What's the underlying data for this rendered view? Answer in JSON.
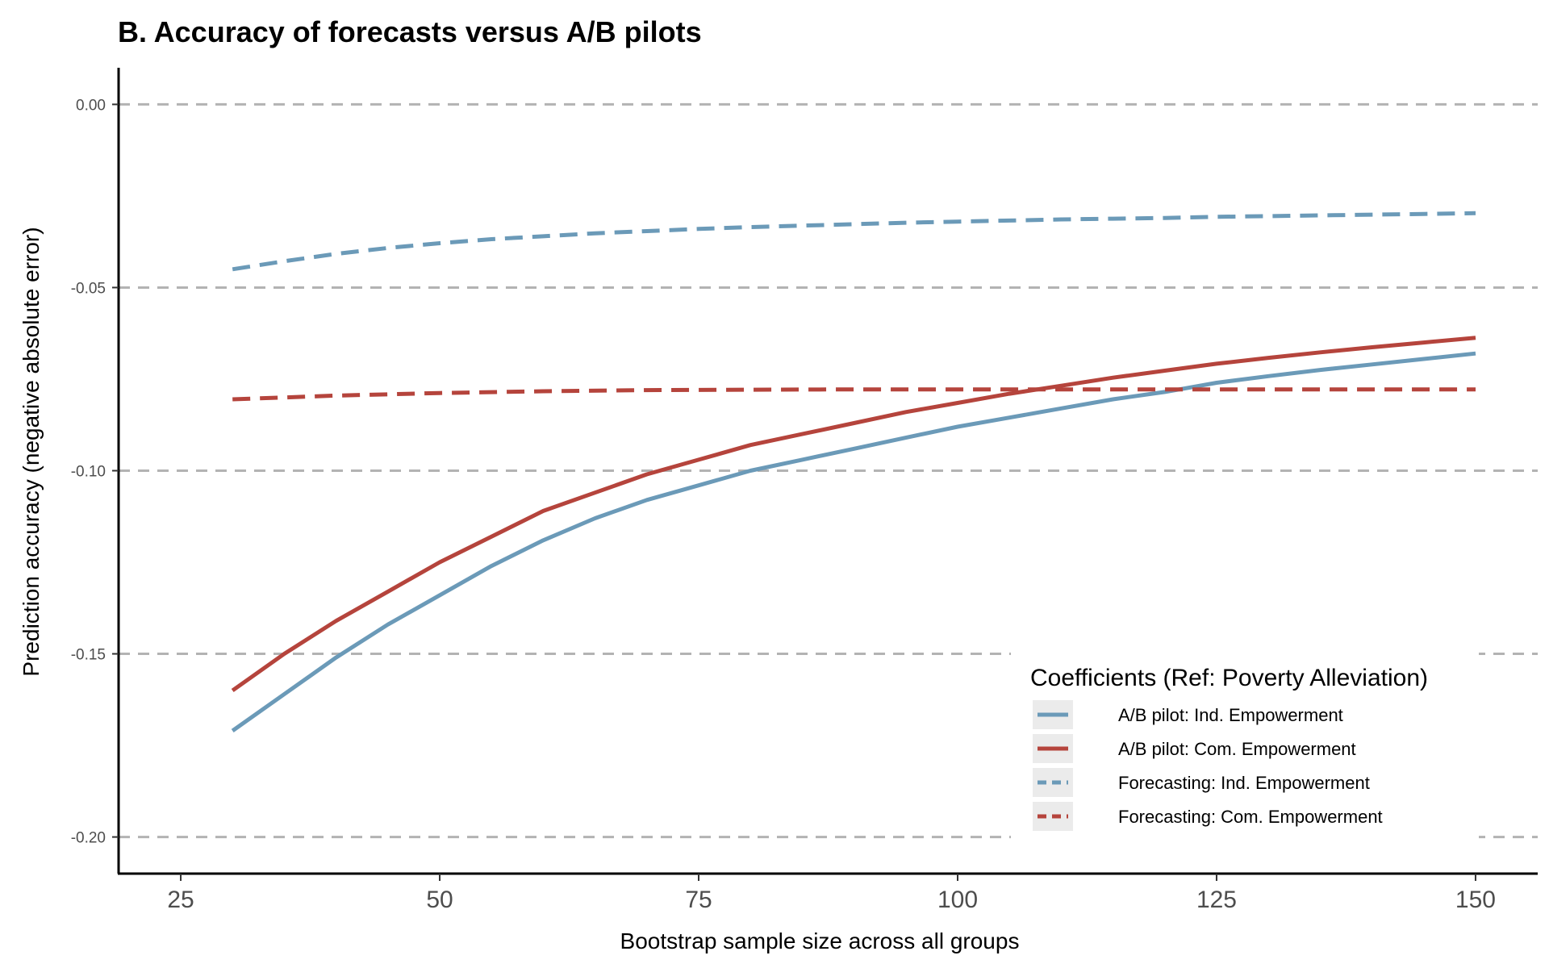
{
  "chart_data": {
    "type": "line",
    "title": "B. Accuracy of forecasts versus A/B pilots",
    "xlabel": "Bootstrap sample size across all groups",
    "ylabel": "Prediction accuracy (negative absolute error)",
    "xlim": [
      19,
      156
    ],
    "ylim": [
      -0.21,
      0.01
    ],
    "x_ticks": [
      25,
      50,
      75,
      100,
      125,
      150
    ],
    "y_ticks": [
      0.0,
      -0.05,
      -0.1,
      -0.15,
      -0.2
    ],
    "x_tick_labels": [
      "25",
      "50",
      "75",
      "100",
      "125",
      "150"
    ],
    "y_tick_labels": [
      "0.00",
      "-0.05",
      "-0.10",
      "-0.15",
      "-0.20"
    ],
    "grid": "horizontal dashed major gridlines",
    "legend": {
      "title": "Coefficients (Ref: Poverty Alleviation)",
      "placement": "bottom-right"
    },
    "series": [
      {
        "name": "A/B pilot: Ind. Empowerment",
        "color": "#6b9ab8",
        "style": "solid",
        "x": [
          30,
          35,
          40,
          45,
          50,
          55,
          60,
          65,
          70,
          75,
          80,
          85,
          90,
          95,
          100,
          105,
          110,
          115,
          120,
          125,
          130,
          135,
          140,
          145,
          150
        ],
        "y": [
          -0.171,
          -0.161,
          -0.151,
          -0.142,
          -0.134,
          -0.126,
          -0.119,
          -0.113,
          -0.108,
          -0.104,
          -0.1,
          -0.097,
          -0.094,
          -0.091,
          -0.088,
          -0.0855,
          -0.083,
          -0.0805,
          -0.0785,
          -0.076,
          -0.0742,
          -0.0725,
          -0.071,
          -0.0695,
          -0.068
        ]
      },
      {
        "name": "A/B pilot: Com. Empowerment",
        "color": "#b5443c",
        "style": "solid",
        "x": [
          30,
          35,
          40,
          45,
          50,
          55,
          60,
          65,
          70,
          75,
          80,
          85,
          90,
          95,
          100,
          105,
          110,
          115,
          120,
          125,
          130,
          135,
          140,
          145,
          150
        ],
        "y": [
          -0.16,
          -0.15,
          -0.141,
          -0.133,
          -0.125,
          -0.118,
          -0.111,
          -0.106,
          -0.101,
          -0.097,
          -0.093,
          -0.09,
          -0.087,
          -0.084,
          -0.0815,
          -0.079,
          -0.0768,
          -0.0746,
          -0.0727,
          -0.0708,
          -0.0692,
          -0.0677,
          -0.0663,
          -0.065,
          -0.0637
        ]
      },
      {
        "name": "Forecasting: Ind. Empowerment",
        "color": "#6b9ab8",
        "style": "dashed",
        "x": [
          30,
          35,
          40,
          45,
          50,
          55,
          60,
          65,
          70,
          75,
          80,
          85,
          90,
          95,
          100,
          105,
          110,
          115,
          120,
          125,
          130,
          135,
          140,
          145,
          150
        ],
        "y": [
          -0.045,
          -0.0428,
          -0.0408,
          -0.0392,
          -0.0379,
          -0.0368,
          -0.036,
          -0.0352,
          -0.0346,
          -0.034,
          -0.0335,
          -0.0331,
          -0.0327,
          -0.0323,
          -0.032,
          -0.0317,
          -0.0314,
          -0.0312,
          -0.031,
          -0.0307,
          -0.0305,
          -0.0303,
          -0.0301,
          -0.0299,
          -0.0297
        ]
      },
      {
        "name": "Forecasting: Com. Empowerment",
        "color": "#b5443c",
        "style": "dashed",
        "x": [
          30,
          40,
          50,
          60,
          70,
          80,
          90,
          100,
          110,
          120,
          130,
          140,
          150
        ],
        "y": [
          -0.0805,
          -0.0795,
          -0.0788,
          -0.0783,
          -0.078,
          -0.0779,
          -0.0778,
          -0.0778,
          -0.0778,
          -0.0778,
          -0.0778,
          -0.0778,
          -0.0778
        ]
      }
    ]
  }
}
